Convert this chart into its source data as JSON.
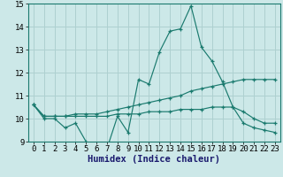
{
  "xlabel": "Humidex (Indice chaleur)",
  "x": [
    0,
    1,
    2,
    3,
    4,
    5,
    6,
    7,
    8,
    9,
    10,
    11,
    12,
    13,
    14,
    15,
    16,
    17,
    18,
    19,
    20,
    21,
    22,
    23
  ],
  "line1": [
    10.6,
    10.0,
    10.0,
    9.6,
    9.8,
    9.0,
    8.7,
    8.7,
    10.1,
    9.4,
    11.7,
    11.5,
    12.9,
    13.8,
    13.9,
    14.9,
    13.1,
    12.5,
    11.6,
    10.5,
    10.3,
    10.0,
    9.8,
    9.8
  ],
  "line2": [
    10.6,
    10.1,
    10.1,
    10.1,
    10.2,
    10.2,
    10.2,
    10.3,
    10.4,
    10.5,
    10.6,
    10.7,
    10.8,
    10.9,
    11.0,
    11.2,
    11.3,
    11.4,
    11.5,
    11.6,
    11.7,
    11.7,
    11.7,
    11.7
  ],
  "line3": [
    10.6,
    10.1,
    10.1,
    10.1,
    10.1,
    10.1,
    10.1,
    10.1,
    10.2,
    10.2,
    10.2,
    10.3,
    10.3,
    10.3,
    10.4,
    10.4,
    10.4,
    10.5,
    10.5,
    10.5,
    9.8,
    9.6,
    9.5,
    9.4
  ],
  "line_color": "#1a7a6e",
  "bg_color": "#cce8e8",
  "grid_color": "#aed0d0",
  "ylim": [
    9,
    15
  ],
  "xlim": [
    -0.5,
    23.5
  ],
  "yticks": [
    9,
    10,
    11,
    12,
    13,
    14,
    15
  ],
  "xticks": [
    0,
    1,
    2,
    3,
    4,
    5,
    6,
    7,
    8,
    9,
    10,
    11,
    12,
    13,
    14,
    15,
    16,
    17,
    18,
    19,
    20,
    21,
    22,
    23
  ],
  "tick_fontsize": 6.5,
  "label_fontsize": 7.5
}
